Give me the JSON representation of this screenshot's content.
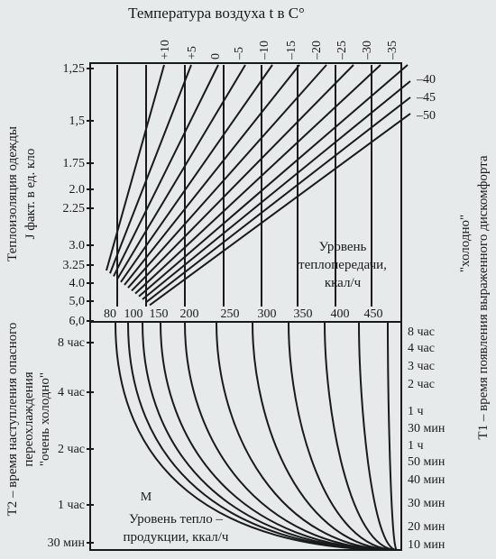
{
  "title": "Температура воздуха t в C°",
  "temperatures": [
    "+10",
    "+5",
    "0",
    "–5",
    "–10",
    "–15",
    "–20",
    "–25",
    "–30",
    "–35"
  ],
  "temperatures_right": [
    "–40",
    "–45",
    "–50"
  ],
  "left_axis_top": {
    "title": "Теплоизоляция одежды",
    "subtitle": "J факт. в ед. кло",
    "ticks": [
      "1,25",
      "1,5",
      "1.75",
      "2.0",
      "2.25",
      "3.0",
      "3.25",
      "4.0",
      "5,0",
      "6,0"
    ]
  },
  "heat_transfer": {
    "label": [
      "Уровень",
      "теплопередачи,",
      "ккал/ч"
    ],
    "ticks": [
      "80",
      "100",
      "150",
      "200",
      "250",
      "300",
      "350",
      "400",
      "450"
    ]
  },
  "left_axis_bottom": {
    "title": [
      "T2 – время наступления опасного",
      "переохлаждения",
      "\"очень холодно\""
    ],
    "ticks": [
      "8 час",
      "4 час",
      "2 час",
      "1 час",
      "30 мин"
    ]
  },
  "right_axis": {
    "title": "T1 – время появления выраженного дискомфорта",
    "subtitle": "\"холодно\"",
    "ticks": [
      "8 час",
      "4 час",
      "3 час",
      "2 час",
      "1 ч",
      "30 мин",
      "1 ч",
      "50 мин",
      "40 мин",
      "30 мин",
      "20 мин",
      "10 мин"
    ]
  },
  "heat_production": {
    "marker": "М",
    "label": [
      "Уровень тепло –",
      "продукции, ккал/ч"
    ]
  }
}
